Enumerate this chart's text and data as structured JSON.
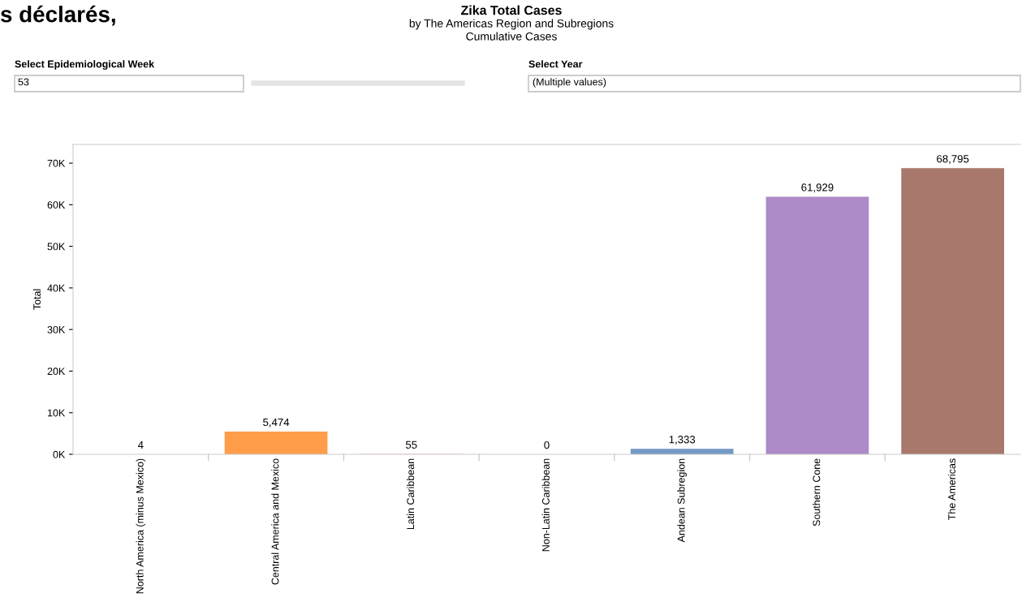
{
  "chart_data": {
    "type": "bar",
    "title": "Zika Total Cases",
    "subtitle": "by The Americas Region and Subregions",
    "ylabel": "Total",
    "categories": [
      "North America (minus Mexico)",
      "Central America and Mexico",
      "Latin Caribbean",
      "Non-Latin Caribbean",
      "Andean Subregion",
      "Southern Cone",
      "The Americas"
    ],
    "values": [
      4,
      5474,
      55,
      0,
      1333,
      61929,
      68795
    ],
    "colors": [
      "#8cc2ca",
      "#ff9d4a",
      "#e15759",
      "#f1ce63",
      "#7399c6",
      "#ae8ac8",
      "#a8786c"
    ],
    "value_labels": [
      "4",
      "5,474",
      "55",
      "0",
      "1,333",
      "61,929",
      "68,795"
    ],
    "ylim": [
      0,
      74500
    ],
    "yticks": [
      {
        "value": 0,
        "label": "0K"
      },
      {
        "value": 10000,
        "label": "10K"
      },
      {
        "value": 20000,
        "label": "20K"
      },
      {
        "value": 30000,
        "label": "30K"
      },
      {
        "value": 40000,
        "label": "40K"
      },
      {
        "value": 50000,
        "label": "50K"
      },
      {
        "value": 60000,
        "label": "60K"
      },
      {
        "value": 70000,
        "label": "70K"
      }
    ],
    "grid": false,
    "legend": false,
    "annotations": [
      "s déclarés,",
      "Cumulative Cases",
      "Select Epidemiological Week",
      "53",
      "Select Year",
      "(Multiple values)"
    ]
  }
}
